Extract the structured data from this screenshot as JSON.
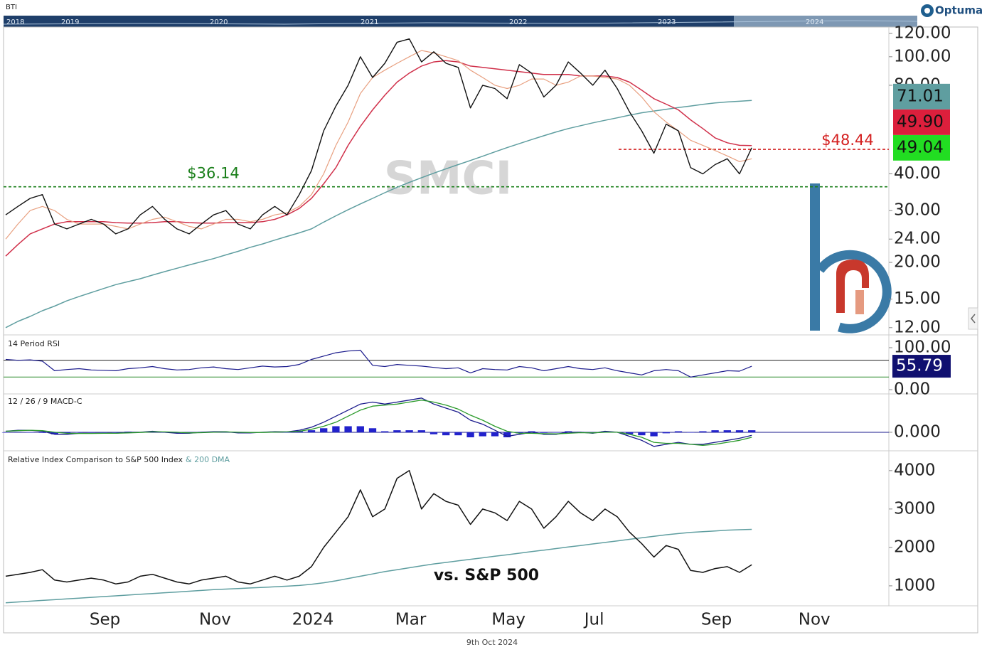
{
  "header": {
    "symbol": "BTI",
    "brand": "Optuma",
    "years": [
      "2018",
      "2019",
      "2020",
      "2021",
      "2022",
      "2023",
      "2024"
    ]
  },
  "chart_data": [
    {
      "type": "line",
      "title": "SMCI",
      "log_scale": true,
      "categories": [
        null,
        null,
        null,
        null,
        null,
        null,
        null,
        null,
        "Sep",
        null,
        null,
        null,
        null,
        null,
        null,
        null,
        null,
        "Nov",
        null,
        null,
        null,
        null,
        null,
        null,
        null,
        "2024",
        null,
        null,
        null,
        null,
        null,
        null,
        null,
        "Mar",
        null,
        null,
        null,
        null,
        null,
        null,
        null,
        "May",
        null,
        null,
        null,
        null,
        null,
        null,
        "Jul",
        null,
        null,
        null,
        null,
        null,
        null,
        null,
        null,
        null,
        "Sep",
        null,
        null,
        null,
        null,
        null,
        null,
        null,
        "Nov"
      ],
      "ylim": [
        11.4,
        126.2
      ],
      "yticks": [
        {
          "value": 12,
          "label": "12.00"
        },
        {
          "value": 15,
          "label": "15.00"
        },
        {
          "value": 20,
          "label": "20.00"
        },
        {
          "value": 24,
          "label": "24.00"
        },
        {
          "value": 30,
          "label": "30.00"
        },
        {
          "value": 40,
          "label": "40.00"
        },
        {
          "value": 80,
          "label": "80.00"
        },
        {
          "value": 100,
          "label": "100.00"
        },
        {
          "value": 120,
          "label": "120.00"
        }
      ],
      "series": [
        {
          "color": "#5f9ea0",
          "width": 1.5,
          "values": [
            12,
            12.6,
            13.1,
            13.7,
            14.2,
            14.8,
            15.3,
            15.8,
            16.3,
            16.8,
            17.2,
            17.6,
            18.1,
            18.6,
            19.1,
            19.6,
            20.1,
            20.6,
            21.2,
            21.8,
            22.5,
            23.1,
            23.8,
            24.5,
            25.2,
            26,
            27.4,
            28.8,
            30.2,
            31.6,
            33,
            34.5,
            36,
            37.4,
            38.8,
            40.2,
            41.6,
            43,
            44.4,
            45.9,
            47.5,
            49.1,
            50.7,
            52.3,
            53.9,
            55.5,
            57,
            58.3,
            59.6,
            60.8,
            62,
            63.3,
            64.5,
            65.4,
            66.3,
            67.2,
            68,
            68.9,
            69.7,
            70.2,
            70.6,
            71.01,
            null,
            null,
            null,
            null,
            null
          ]
        },
        {
          "color": "#d0304a",
          "width": 1.5,
          "values": [
            21,
            23,
            25,
            26,
            27,
            27.5,
            27.5,
            27.5,
            27.5,
            27.3,
            27.2,
            27.2,
            27.3,
            27.5,
            27.5,
            27.3,
            27.2,
            27.2,
            27.3,
            27.3,
            27.3,
            27.5,
            28,
            29,
            30.5,
            33,
            37,
            42,
            50,
            58,
            66,
            74,
            82,
            88,
            93,
            96,
            97,
            96,
            93,
            92,
            91,
            90,
            89,
            88,
            87,
            87,
            87,
            86,
            86,
            86,
            85,
            82,
            77,
            72,
            69,
            66,
            61,
            57,
            53,
            51,
            50,
            49.9,
            null,
            null,
            null,
            null,
            null
          ]
        },
        {
          "color": "#e8a080",
          "width": 1.2,
          "values": [
            24,
            27,
            30,
            31,
            30,
            28,
            27,
            27,
            27,
            26.5,
            26,
            27,
            28,
            28.5,
            27.5,
            26.5,
            26,
            27,
            28,
            28,
            27.5,
            28,
            29,
            29.5,
            31,
            34,
            40,
            50,
            60,
            75,
            85,
            90,
            95,
            100,
            105,
            103,
            100,
            97,
            90,
            85,
            80,
            78,
            80,
            84,
            84,
            80,
            82,
            86,
            86,
            85,
            84,
            80,
            73,
            65,
            60,
            56,
            52,
            50,
            48,
            46,
            44,
            45,
            null,
            null,
            null,
            null,
            null
          ]
        },
        {
          "color": "#111111",
          "width": 1.4,
          "values": [
            29,
            31,
            33,
            34,
            27,
            26,
            27,
            28,
            27,
            25,
            26,
            29,
            31,
            28,
            26,
            25,
            27,
            29,
            30,
            27,
            26,
            29,
            31,
            29,
            34,
            41,
            56,
            68,
            80,
            100,
            85,
            95,
            112,
            115,
            96,
            104,
            95,
            92,
            67,
            80,
            78,
            72,
            94,
            88,
            73,
            80,
            96,
            88,
            80,
            90,
            78,
            65,
            56,
            47,
            59,
            56,
            42,
            40,
            43,
            45,
            40,
            49.04,
            null,
            null,
            null,
            null,
            null
          ]
        }
      ],
      "levels": [
        {
          "value": 36.14,
          "label": "$36.14",
          "color": "#1a7f1a"
        },
        {
          "value": 48.44,
          "label": "$48.44",
          "color": "#d42020"
        }
      ],
      "price_labels": [
        {
          "value": 49.04,
          "label": "49.04",
          "color": "#22dd22"
        },
        {
          "value": 49.9,
          "label": "49.90",
          "color": "#dc1f3c"
        },
        {
          "value": 71.01,
          "label": "71.01",
          "color": "#5f9ea0"
        }
      ]
    },
    {
      "type": "line",
      "title": "14 Period RSI",
      "ylim": [
        -6.8,
        123.7
      ],
      "yticks": [
        {
          "value": 0,
          "label": "0.00"
        },
        {
          "value": 100,
          "label": "100.00"
        }
      ],
      "levels": [
        {
          "value": 70,
          "color": "#222222"
        },
        {
          "value": 30,
          "color": "#2a8a2a"
        }
      ],
      "series": [
        {
          "color": "#1a1a8c",
          "width": 1.2,
          "value_box": "#101070",
          "values": [
            72,
            70,
            71,
            68,
            45,
            48,
            50,
            47,
            46,
            45,
            50,
            52,
            55,
            50,
            47,
            48,
            52,
            54,
            50,
            48,
            52,
            56,
            54,
            55,
            60,
            72,
            80,
            88,
            92,
            94,
            58,
            55,
            60,
            58,
            56,
            53,
            50,
            52,
            40,
            50,
            48,
            47,
            55,
            52,
            45,
            50,
            55,
            50,
            48,
            52,
            45,
            40,
            35,
            45,
            48,
            45,
            30,
            35,
            40,
            45,
            44,
            55.79,
            null,
            null,
            null,
            null,
            null
          ]
        }
      ]
    },
    {
      "type": "line",
      "title": "12 / 26 / 9 MACD-C",
      "ylim": [
        -8.5,
        18
      ],
      "yticks": [
        {
          "value": 0,
          "label": "0.000"
        }
      ],
      "levels": [
        {
          "value": 0,
          "color": "#1a1a8c"
        }
      ],
      "series": [
        {
          "kind": "bar",
          "color": "#2222cc",
          "values": [
            0,
            0.2,
            0,
            -0.3,
            -1,
            -0.5,
            0.1,
            0.1,
            0,
            0,
            0.3,
            0.1,
            0.3,
            -0.2,
            -0.5,
            -0.2,
            0.2,
            0.3,
            0.1,
            -0.3,
            -0.2,
            0.1,
            0.2,
            0,
            0.5,
            1,
            2,
            3,
            3,
            3,
            2,
            0.5,
            1,
            1,
            1,
            -1,
            -1.5,
            -1.5,
            -2.5,
            -2,
            -2,
            -2.5,
            -0.5,
            0.5,
            -0.3,
            -0.2,
            0.5,
            0.2,
            -0.2,
            0.5,
            0,
            -1,
            -1.5,
            -2,
            -0.5,
            0.5,
            0,
            0.5,
            1,
            1,
            1,
            1,
            null,
            null,
            null,
            null,
            null
          ]
        },
        {
          "color": "#1a1a8c",
          "width": 1.3,
          "values": [
            0.5,
            1,
            1,
            0.5,
            -1,
            -1,
            -0.5,
            -0.5,
            -0.5,
            -0.5,
            0,
            0,
            0.5,
            0,
            -0.5,
            -0.5,
            0,
            0.3,
            0.3,
            -0.3,
            -0.3,
            0,
            0.3,
            0.2,
            1,
            2.5,
            5,
            8,
            11,
            14,
            15,
            14,
            15,
            16,
            17,
            14,
            12,
            10,
            6,
            4,
            1,
            -2,
            -1,
            0,
            -1,
            -1,
            0,
            0,
            -0.5,
            0.5,
            0,
            -2,
            -4,
            -7,
            -6,
            -5,
            -6,
            -6,
            -5,
            -4,
            -3,
            -1.5,
            null,
            null,
            null,
            null,
            null
          ]
        },
        {
          "color": "#2a9a2a",
          "width": 1.3,
          "values": [
            0.5,
            0.8,
            1,
            0.8,
            0,
            -0.5,
            -0.6,
            -0.6,
            -0.5,
            -0.5,
            -0.3,
            -0.1,
            0.2,
            0.2,
            0,
            -0.3,
            -0.2,
            0,
            0.2,
            0,
            -0.1,
            -0.1,
            0.1,
            0.2,
            0.5,
            1.5,
            3,
            5,
            8,
            11,
            13,
            13.5,
            14,
            15,
            16,
            15,
            13.5,
            11.5,
            8.5,
            6,
            3,
            0.5,
            -0.5,
            -0.5,
            -0.7,
            -0.8,
            -0.5,
            -0.2,
            -0.3,
            0,
            0,
            -1,
            -2.5,
            -5,
            -5.5,
            -5.5,
            -6,
            -6.5,
            -6,
            -5,
            -4,
            -2.5,
            null,
            null,
            null,
            null,
            null
          ]
        }
      ]
    },
    {
      "type": "line",
      "title": "Relative Index Comparison to S&P 500 Index",
      "subtitle": "& 200 DMA",
      "annotation": "vs. S&P 500",
      "ylim": [
        480,
        4460
      ],
      "yticks": [
        1000,
        2000,
        3000,
        4000
      ],
      "series": [
        {
          "color": "#5f9ea0",
          "width": 1.5,
          "values": [
            560,
            580,
            600,
            620,
            640,
            660,
            680,
            700,
            720,
            740,
            760,
            780,
            800,
            820,
            840,
            860,
            880,
            900,
            915,
            930,
            945,
            960,
            975,
            990,
            1010,
            1040,
            1080,
            1130,
            1190,
            1250,
            1310,
            1370,
            1420,
            1470,
            1520,
            1570,
            1610,
            1650,
            1690,
            1730,
            1770,
            1810,
            1850,
            1890,
            1930,
            1970,
            2010,
            2050,
            2090,
            2130,
            2170,
            2210,
            2250,
            2290,
            2330,
            2360,
            2390,
            2410,
            2430,
            2450,
            2460,
            2470,
            null,
            null,
            null,
            null,
            null
          ]
        },
        {
          "color": "#111111",
          "width": 1.5,
          "values": [
            1250,
            1300,
            1350,
            1420,
            1150,
            1100,
            1150,
            1200,
            1150,
            1050,
            1100,
            1250,
            1300,
            1200,
            1100,
            1050,
            1150,
            1200,
            1250,
            1100,
            1050,
            1150,
            1250,
            1150,
            1250,
            1500,
            2000,
            2400,
            2800,
            3500,
            2800,
            3000,
            3800,
            4000,
            3000,
            3400,
            3200,
            3100,
            2600,
            3000,
            2900,
            2700,
            3200,
            3000,
            2500,
            2800,
            3200,
            2900,
            2700,
            3000,
            2800,
            2400,
            2100,
            1750,
            2050,
            1950,
            1400,
            1350,
            1450,
            1500,
            1350,
            1550,
            null,
            null,
            null,
            null,
            null
          ]
        }
      ]
    }
  ],
  "footer": "9th Oct 2024"
}
